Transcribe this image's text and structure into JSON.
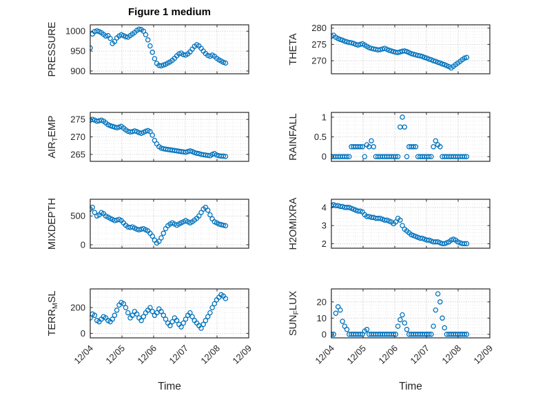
{
  "chart_data": {
    "type": "scatter",
    "title": "Figure 1 medium",
    "xlabel": "Time",
    "x_unit": "day of December",
    "x_lim": [
      4,
      9
    ],
    "x_ticks": [
      4,
      5,
      6,
      7,
      8,
      9
    ],
    "x_tick_labels": [
      "12/04",
      "12/05",
      "12/06",
      "12/07",
      "12/08",
      "12/09"
    ],
    "x_minor_step": 0.25,
    "grid": "on",
    "marker": "open-circle",
    "x": [
      4,
      4.07,
      4.14,
      4.21,
      4.28,
      4.35,
      4.42,
      4.49,
      4.56,
      4.63,
      4.7,
      4.77,
      4.84,
      4.91,
      4.98,
      5.05,
      5.12,
      5.19,
      5.26,
      5.33,
      5.4,
      5.47,
      5.54,
      5.61,
      5.68,
      5.75,
      5.82,
      5.89,
      5.96,
      6.03,
      6.1,
      6.17,
      6.24,
      6.31,
      6.38,
      6.45,
      6.52,
      6.59,
      6.66,
      6.73,
      6.8,
      6.87,
      6.94,
      7.01,
      7.08,
      7.15,
      7.22,
      7.29,
      7.36,
      7.43,
      7.5,
      7.57,
      7.64,
      7.71,
      7.78,
      7.85,
      7.92,
      7.99,
      8.06,
      8.13,
      8.2,
      8.27
    ],
    "series": [
      {
        "name": "PRESSURE",
        "ylabel": "PRESSURE",
        "row": 0,
        "col": 0,
        "ylim": [
          893,
          1016
        ],
        "yticks": [
          900,
          950,
          1000
        ],
        "ytick_labels": [
          "900",
          "950",
          "1000"
        ],
        "values": [
          958,
          993,
          999,
          1001,
          999,
          996,
          992,
          988,
          989,
          982,
          969,
          974,
          983,
          988,
          991,
          989,
          986,
          985,
          989,
          993,
          997,
          1002,
          1005,
          1004,
          1000,
          991,
          978,
          963,
          947,
          931,
          919,
          914,
          913,
          915,
          917,
          920,
          923,
          927,
          932,
          938,
          943,
          945,
          941,
          940,
          943,
          948,
          955,
          962,
          966,
          963,
          957,
          950,
          944,
          939,
          937,
          940,
          937,
          932,
          928,
          925,
          922,
          920
        ]
      },
      {
        "name": "THETA",
        "ylabel": "THETA",
        "row": 0,
        "col": 1,
        "ylim": [
          266,
          281
        ],
        "yticks": [
          270,
          275,
          280
        ],
        "ytick_labels": [
          "270",
          "275",
          "280"
        ],
        "values": [
          277.5,
          277.8,
          277.2,
          276.8,
          276.5,
          276.3,
          276,
          275.8,
          275.6,
          275.5,
          275.3,
          275,
          274.8,
          275,
          275.2,
          274.8,
          274.4,
          274,
          273.8,
          273.6,
          273.5,
          273.3,
          273.4,
          273.6,
          273.8,
          273.5,
          273.2,
          273,
          272.8,
          272.6,
          272.5,
          272.7,
          272.9,
          273,
          272.8,
          272.5,
          272.2,
          272,
          271.8,
          271.6,
          271.5,
          271.3,
          271,
          270.8,
          270.5,
          270.3,
          270,
          269.8,
          269.5,
          269.3,
          269,
          268.8,
          268.5,
          268.2,
          267.8,
          268.3,
          268.8,
          269.3,
          269.8,
          270.3,
          270.8,
          271
        ]
      },
      {
        "name": "AIR_TEMP",
        "ylabel": "AIR_TEMP",
        "row": 1,
        "col": 0,
        "ylim": [
          263,
          277
        ],
        "yticks": [
          265,
          270,
          275
        ],
        "ytick_labels": [
          "265",
          "270",
          "275"
        ],
        "values": [
          274.8,
          275,
          274.8,
          274.5,
          274.6,
          274.8,
          274.5,
          274,
          273.5,
          273.2,
          273,
          272.8,
          272.6,
          272.8,
          273,
          272.5,
          272,
          271.6,
          271.4,
          271.5,
          271.7,
          271.5,
          271.2,
          271,
          271.3,
          271.6,
          271.8,
          271.5,
          270.5,
          269,
          268,
          267.2,
          266.8,
          266.6,
          266.5,
          266.4,
          266.3,
          266.2,
          266.1,
          266,
          265.9,
          265.8,
          265.7,
          265.6,
          265.8,
          266,
          265.8,
          265.5,
          265.3,
          265.2,
          265,
          264.9,
          264.8,
          264.7,
          264.6,
          265,
          265.2,
          264.8,
          264.6,
          264.5,
          264.5,
          264.4
        ]
      },
      {
        "name": "RAINFALL",
        "ylabel": "RAINFALL",
        "row": 1,
        "col": 1,
        "ylim": [
          -0.12,
          1.12
        ],
        "yticks": [
          0,
          0.5,
          1
        ],
        "ytick_labels": [
          "0",
          "0.5",
          "1"
        ],
        "values": [
          0,
          0,
          0,
          0,
          0,
          0,
          0,
          0,
          0,
          0.25,
          0.25,
          0.25,
          0.25,
          0.25,
          0.25,
          0,
          0.3,
          0.25,
          0.4,
          0.25,
          0,
          0,
          0,
          0,
          0,
          0,
          0,
          0,
          0,
          0,
          0,
          0.75,
          1,
          0.75,
          0,
          0.25,
          0.25,
          0.25,
          0.25,
          0,
          0,
          0,
          0,
          0,
          0,
          0,
          0.25,
          0.4,
          0.3,
          0.25,
          0,
          0,
          0,
          0,
          0,
          0,
          0,
          0,
          0,
          0,
          0,
          0
        ]
      },
      {
        "name": "MIXDEPTH",
        "ylabel": "MIXDEPTH",
        "row": 2,
        "col": 0,
        "ylim": [
          -60,
          790
        ],
        "yticks": [
          0,
          500
        ],
        "ytick_labels": [
          "0",
          "500"
        ],
        "values": [
          620,
          650,
          560,
          500,
          520,
          560,
          540,
          500,
          480,
          460,
          440,
          420,
          430,
          440,
          420,
          380,
          340,
          310,
          300,
          310,
          290,
          270,
          260,
          270,
          280,
          260,
          240,
          200,
          150,
          80,
          30,
          60,
          120,
          200,
          280,
          330,
          360,
          380,
          360,
          340,
          360,
          380,
          400,
          420,
          400,
          380,
          400,
          430,
          460,
          500,
          560,
          620,
          650,
          600,
          520,
          450,
          400,
          380,
          360,
          350,
          340,
          330
        ]
      },
      {
        "name": "H2OMIXRA",
        "ylabel": "H2OMIXRA",
        "row": 2,
        "col": 1,
        "ylim": [
          1.75,
          4.45
        ],
        "yticks": [
          2,
          3,
          4
        ],
        "ytick_labels": [
          "2",
          "3",
          "4"
        ],
        "values": [
          4.1,
          4.15,
          4.1,
          4.1,
          4.05,
          4.05,
          4,
          4,
          4,
          3.95,
          3.9,
          3.85,
          3.8,
          3.8,
          3.75,
          3.6,
          3.5,
          3.5,
          3.45,
          3.45,
          3.4,
          3.4,
          3.4,
          3.35,
          3.3,
          3.3,
          3.25,
          3.2,
          3.1,
          3.2,
          3.4,
          3.3,
          3,
          2.8,
          2.7,
          2.6,
          2.5,
          2.45,
          2.4,
          2.35,
          2.3,
          2.3,
          2.25,
          2.2,
          2.2,
          2.15,
          2.1,
          2.1,
          2.1,
          2.05,
          2,
          2,
          2.05,
          2.1,
          2.2,
          2.25,
          2.2,
          2.1,
          2.05,
          2,
          2,
          2
        ]
      },
      {
        "name": "TERR_MSL",
        "ylabel": "TERR_MSL",
        "row": 3,
        "col": 0,
        "ylim": [
          -35,
          345
        ],
        "yticks": [
          0,
          200
        ],
        "ytick_labels": [
          "0",
          "200"
        ],
        "values": [
          120,
          150,
          140,
          100,
          90,
          110,
          130,
          120,
          100,
          90,
          110,
          140,
          180,
          220,
          240,
          230,
          200,
          160,
          120,
          140,
          170,
          150,
          120,
          100,
          130,
          160,
          180,
          200,
          170,
          140,
          160,
          190,
          170,
          140,
          110,
          80,
          60,
          90,
          120,
          100,
          70,
          50,
          80,
          110,
          140,
          160,
          130,
          100,
          80,
          60,
          40,
          70,
          100,
          130,
          160,
          200,
          230,
          260,
          280,
          300,
          290,
          270
        ]
      },
      {
        "name": "SUN_FLUX",
        "ylabel": "SUN_FLUX",
        "row": 3,
        "col": 1,
        "ylim": [
          -2.2,
          28
        ],
        "yticks": [
          0,
          10,
          20
        ],
        "ytick_labels": [
          "0",
          "10",
          "20"
        ],
        "values": [
          0,
          0,
          13,
          17,
          15,
          8,
          5,
          3,
          0,
          0,
          0,
          0,
          0,
          0,
          0,
          2,
          3,
          0,
          0,
          0,
          0,
          0,
          0,
          0,
          0,
          0,
          0,
          0,
          0,
          0,
          5,
          9,
          12,
          7,
          3,
          0,
          0,
          0,
          0,
          0,
          0,
          0,
          0,
          0,
          0,
          0,
          5,
          15,
          25,
          20,
          10,
          4,
          0,
          0,
          0,
          0,
          0,
          0,
          0,
          0,
          0,
          0
        ]
      }
    ]
  },
  "style": {
    "marker_color": "#0072BD",
    "axis_color": "#262626",
    "grid_color": "#b0b0b0",
    "minor_grid_color": "#dcdcdc",
    "background": "#ffffff",
    "title_color": "#000000"
  }
}
